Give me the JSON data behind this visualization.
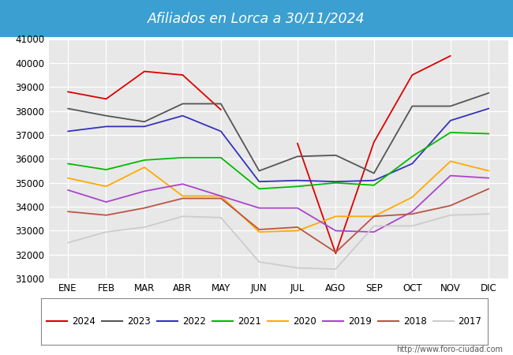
{
  "title": "Afiliados en Lorca a 30/11/2024",
  "title_bg_color": "#3b9fd1",
  "title_text_color": "white",
  "months": [
    "ENE",
    "FEB",
    "MAR",
    "ABR",
    "MAY",
    "JUN",
    "JUL",
    "AGO",
    "SEP",
    "OCT",
    "NOV",
    "DIC"
  ],
  "ylim": [
    31000,
    41000
  ],
  "yticks": [
    31000,
    32000,
    33000,
    34000,
    35000,
    36000,
    37000,
    38000,
    39000,
    40000,
    41000
  ],
  "series": {
    "2024": {
      "color": "#dd0000",
      "data": [
        38800,
        38500,
        39650,
        39500,
        38050,
        null,
        36650,
        32050,
        36700,
        39500,
        40300,
        null
      ]
    },
    "2023": {
      "color": "#555555",
      "data": [
        38100,
        37800,
        37550,
        38300,
        38300,
        35500,
        36100,
        36150,
        35400,
        38200,
        38200,
        38750
      ]
    },
    "2022": {
      "color": "#3333bb",
      "data": [
        37150,
        37350,
        37350,
        37800,
        37150,
        35050,
        35100,
        35050,
        35100,
        35800,
        37600,
        38100
      ]
    },
    "2021": {
      "color": "#00bb00",
      "data": [
        35800,
        35550,
        35950,
        36050,
        36050,
        34750,
        34850,
        35000,
        34900,
        36100,
        37100,
        37050
      ]
    },
    "2020": {
      "color": "#ffaa00",
      "data": [
        35200,
        34850,
        35650,
        34450,
        34450,
        32950,
        33000,
        33600,
        33600,
        34400,
        35900,
        35500
      ]
    },
    "2019": {
      "color": "#aa44cc",
      "data": [
        34700,
        34200,
        34650,
        34950,
        34450,
        33950,
        33950,
        33000,
        32950,
        33800,
        35300,
        35200
      ]
    },
    "2018": {
      "color": "#bb5544",
      "data": [
        33800,
        33650,
        33950,
        34350,
        34350,
        33050,
        33150,
        32100,
        33600,
        33700,
        34050,
        34750
      ]
    },
    "2017": {
      "color": "#cccccc",
      "data": [
        32500,
        32950,
        33150,
        33600,
        33550,
        31700,
        31450,
        31400,
        33200,
        33200,
        33650,
        33700
      ]
    }
  },
  "footer_text": "http://www.foro-ciudad.com",
  "bg_color": "#ffffff",
  "plot_bg_color": "#e8e8e8"
}
